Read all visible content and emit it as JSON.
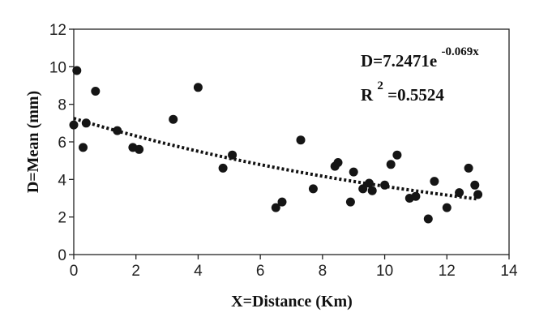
{
  "chart_data": {
    "type": "scatter",
    "xlabel": "X=Distance (Km)",
    "ylabel": "D=Mean (mm)",
    "xlim": [
      0,
      14
    ],
    "ylim": [
      0,
      12
    ],
    "xticks": [
      "0",
      "2",
      "4",
      "6",
      "8",
      "10",
      "12",
      "14"
    ],
    "yticks": [
      "0",
      "2",
      "4",
      "6",
      "8",
      "10",
      "12"
    ],
    "grid": false,
    "equation": {
      "main": "D=7.2471e",
      "exponent": "-0.069x",
      "r2_prefix": "R",
      "r2_sup": "2",
      "r2_value": "=0.5524"
    },
    "trendline": {
      "a": 7.2471,
      "b": -0.069,
      "x_range": [
        0,
        13
      ]
    },
    "series": [
      {
        "points": [
          [
            0.0,
            6.9
          ],
          [
            0.1,
            9.8
          ],
          [
            0.3,
            5.7
          ],
          [
            0.4,
            7.0
          ],
          [
            0.7,
            8.7
          ],
          [
            1.4,
            6.6
          ],
          [
            1.9,
            5.7
          ],
          [
            2.1,
            5.6
          ],
          [
            3.2,
            7.2
          ],
          [
            4.0,
            8.9
          ],
          [
            4.8,
            4.6
          ],
          [
            5.1,
            5.3
          ],
          [
            6.5,
            2.5
          ],
          [
            6.7,
            2.8
          ],
          [
            7.3,
            6.1
          ],
          [
            7.7,
            3.5
          ],
          [
            8.4,
            4.7
          ],
          [
            8.5,
            4.9
          ],
          [
            8.9,
            2.8
          ],
          [
            9.0,
            4.4
          ],
          [
            9.3,
            3.5
          ],
          [
            9.5,
            3.8
          ],
          [
            9.6,
            3.4
          ],
          [
            10.0,
            3.7
          ],
          [
            10.2,
            4.8
          ],
          [
            10.4,
            5.3
          ],
          [
            10.8,
            3.0
          ],
          [
            11.0,
            3.1
          ],
          [
            11.4,
            1.9
          ],
          [
            11.6,
            3.9
          ],
          [
            12.0,
            2.5
          ],
          [
            12.4,
            3.3
          ],
          [
            12.7,
            4.6
          ],
          [
            12.9,
            3.7
          ],
          [
            13.0,
            3.2
          ]
        ]
      }
    ]
  }
}
